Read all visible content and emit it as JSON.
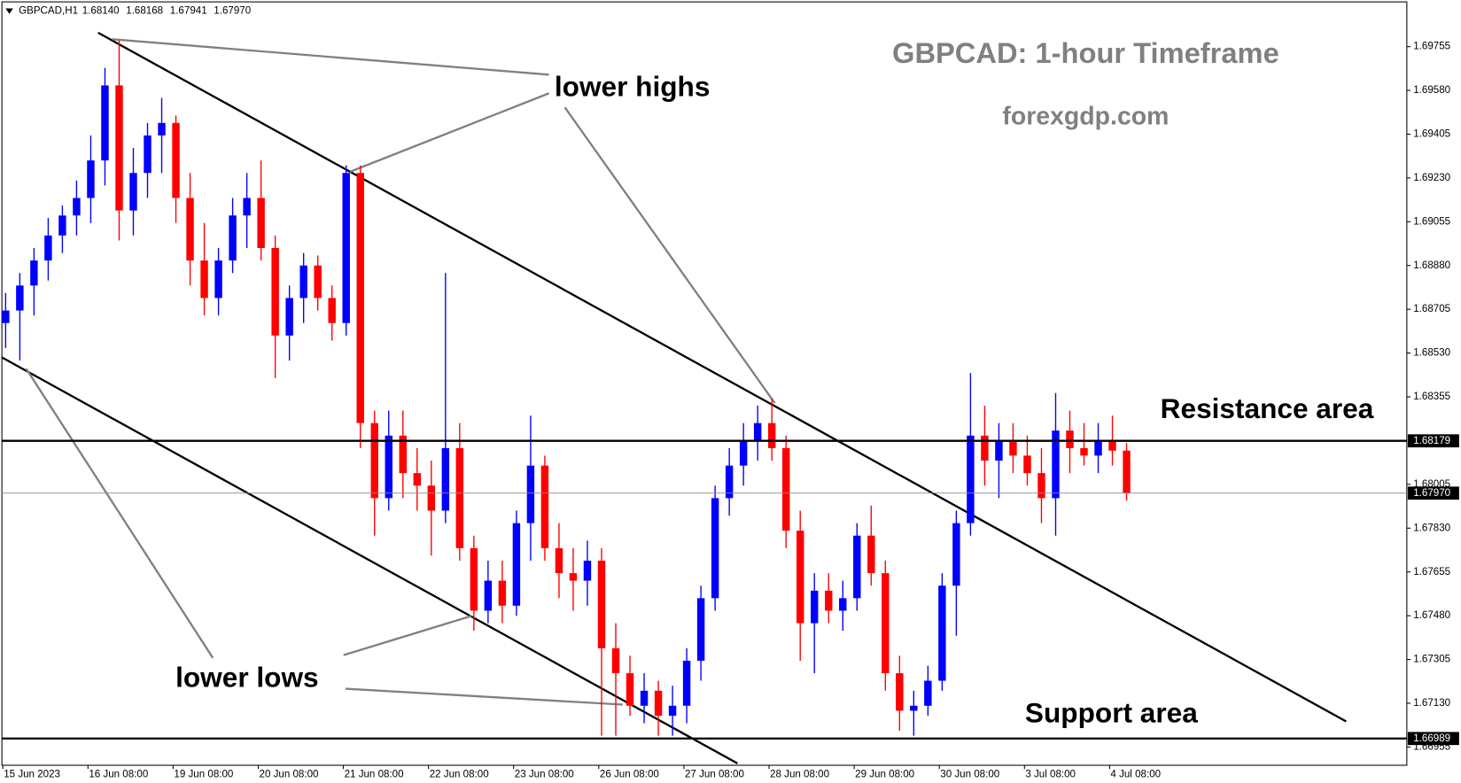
{
  "chart_data": {
    "type": "candlestick",
    "header": {
      "symbol": "GBPCAD,H1",
      "open": "1.68140",
      "high": "1.68168",
      "low": "1.67941",
      "close": "1.67970"
    },
    "title": "GBPCAD: 1-hour Timeframe",
    "subtitle": "forexgdp.com",
    "annotations": [
      "lower highs",
      "lower lows",
      "Resistance area",
      "Support area"
    ],
    "up_color": "#0000ff",
    "down_color": "#ff0000",
    "categories": [
      "15 Jun 2023",
      null,
      null,
      null,
      null,
      null,
      "16 Jun 08:00",
      null,
      null,
      null,
      null,
      null,
      "19 Jun 08:00",
      null,
      null,
      null,
      null,
      null,
      "20 Jun 08:00",
      null,
      null,
      null,
      null,
      null,
      "21 Jun 08:00",
      null,
      null,
      null,
      null,
      null,
      "22 Jun 08:00",
      null,
      null,
      null,
      null,
      null,
      "23 Jun 08:00",
      null,
      null,
      null,
      null,
      null,
      "26 Jun 08:00",
      null,
      null,
      null,
      null,
      null,
      "27 Jun 08:00",
      null,
      null,
      null,
      null,
      null,
      "28 Jun 08:00",
      null,
      null,
      null,
      null,
      null,
      "29 Jun 08:00",
      null,
      null,
      null,
      null,
      null,
      "30 Jun 08:00",
      null,
      null,
      null,
      null,
      null,
      "3 Jul 08:00",
      null,
      null,
      null,
      null,
      null,
      "4 Jul 08:00",
      null
    ],
    "open": [
      1.6865,
      1.687,
      1.688,
      1.689,
      1.69,
      1.6908,
      1.6915,
      1.693,
      1.696,
      1.691,
      1.6925,
      1.694,
      1.6945,
      1.6915,
      1.689,
      1.6875,
      1.689,
      1.6908,
      1.6915,
      1.6895,
      1.686,
      1.6875,
      1.6888,
      1.6875,
      1.6865,
      1.6925,
      1.6825,
      1.6795,
      1.682,
      1.6805,
      1.68,
      1.679,
      1.6815,
      1.6775,
      1.675,
      1.6762,
      1.6752,
      1.6785,
      1.6808,
      1.6775,
      1.6765,
      1.6762,
      1.677,
      1.6735,
      1.6725,
      1.6712,
      1.6718,
      1.6708,
      1.6712,
      1.673,
      1.6755,
      1.6795,
      1.6808,
      1.6818,
      1.6825,
      1.6815,
      1.6782,
      1.6745,
      1.6758,
      1.675,
      1.6755,
      1.678,
      1.6765,
      1.6725,
      1.671,
      1.6712,
      1.6722,
      1.676,
      1.6785,
      1.682,
      1.681,
      1.6818,
      1.6812,
      1.6805,
      1.6795,
      1.6822,
      1.6815,
      1.6812,
      1.6818,
      1.6814
    ],
    "high": [
      1.6877,
      1.6885,
      1.6895,
      1.6907,
      1.6912,
      1.6922,
      1.694,
      1.6967,
      1.6978,
      1.6935,
      1.6945,
      1.6955,
      1.6948,
      1.6925,
      1.6905,
      1.6895,
      1.6915,
      1.6925,
      1.693,
      1.69,
      1.688,
      1.6893,
      1.6892,
      1.688,
      1.6928,
      1.6928,
      1.683,
      1.683,
      1.683,
      1.6815,
      1.681,
      1.6885,
      1.6825,
      1.678,
      1.677,
      1.677,
      1.679,
      1.6828,
      1.6812,
      1.6785,
      1.6775,
      1.6778,
      1.6775,
      1.6745,
      1.6732,
      1.6725,
      1.6722,
      1.672,
      1.6735,
      1.676,
      1.68,
      1.6815,
      1.6825,
      1.6832,
      1.6835,
      1.682,
      1.679,
      1.6765,
      1.6765,
      1.6762,
      1.6785,
      1.6792,
      1.677,
      1.6732,
      1.6718,
      1.6728,
      1.6765,
      1.679,
      1.6845,
      1.6832,
      1.6825,
      1.6825,
      1.682,
      1.6815,
      1.6837,
      1.683,
      1.6825,
      1.6825,
      1.6828,
      1.6817
    ],
    "low": [
      1.6855,
      1.685,
      1.6868,
      1.6882,
      1.6893,
      1.69,
      1.6905,
      1.692,
      1.6898,
      1.69,
      1.6915,
      1.6925,
      1.6905,
      1.688,
      1.6868,
      1.6868,
      1.6885,
      1.6895,
      1.689,
      1.6843,
      1.685,
      1.6865,
      1.687,
      1.6858,
      1.686,
      1.6815,
      1.678,
      1.679,
      1.6795,
      1.679,
      1.6772,
      1.6785,
      1.677,
      1.6742,
      1.6745,
      1.6745,
      1.6748,
      1.677,
      1.677,
      1.6755,
      1.675,
      1.6752,
      1.67,
      1.67,
      1.6708,
      1.6705,
      1.67,
      1.67,
      1.6705,
      1.6722,
      1.675,
      1.6788,
      1.68,
      1.681,
      1.681,
      1.6775,
      1.673,
      1.6725,
      1.6745,
      1.6742,
      1.675,
      1.676,
      1.6718,
      1.6702,
      1.67,
      1.6708,
      1.6718,
      1.674,
      1.678,
      1.68,
      1.6795,
      1.6805,
      1.68,
      1.6785,
      1.678,
      1.6805,
      1.6808,
      1.6805,
      1.6808,
      1.6794
    ],
    "close": [
      1.687,
      1.688,
      1.689,
      1.69,
      1.6908,
      1.6915,
      1.693,
      1.696,
      1.691,
      1.6925,
      1.694,
      1.6945,
      1.6915,
      1.689,
      1.6875,
      1.689,
      1.6908,
      1.6915,
      1.6895,
      1.686,
      1.6875,
      1.6888,
      1.6875,
      1.6865,
      1.6925,
      1.6825,
      1.6795,
      1.682,
      1.6805,
      1.68,
      1.679,
      1.6815,
      1.6775,
      1.675,
      1.6762,
      1.6752,
      1.6785,
      1.6808,
      1.6775,
      1.6765,
      1.6762,
      1.677,
      1.6735,
      1.6725,
      1.6712,
      1.6718,
      1.6708,
      1.6712,
      1.673,
      1.6755,
      1.6795,
      1.6808,
      1.6818,
      1.6825,
      1.6815,
      1.6782,
      1.6745,
      1.6758,
      1.675,
      1.6755,
      1.678,
      1.6765,
      1.6725,
      1.671,
      1.6712,
      1.6722,
      1.676,
      1.6785,
      1.682,
      1.681,
      1.6818,
      1.6812,
      1.6805,
      1.6795,
      1.6822,
      1.6815,
      1.6812,
      1.6818,
      1.6814,
      1.6797
    ],
    "ylim": [
      1.66882,
      1.69934
    ],
    "yticks": [
      {
        "value": 1.69755,
        "label": "1.69755"
      },
      {
        "value": 1.6958,
        "label": "1.69580"
      },
      {
        "value": 1.69405,
        "label": "1.69405"
      },
      {
        "value": 1.6923,
        "label": "1.69230"
      },
      {
        "value": 1.69055,
        "label": "1.69055"
      },
      {
        "value": 1.6888,
        "label": "1.68880"
      },
      {
        "value": 1.68705,
        "label": "1.68705"
      },
      {
        "value": 1.6853,
        "label": "1.68530"
      },
      {
        "value": 1.68355,
        "label": "1.68355"
      },
      {
        "value": 1.68005,
        "label": "1.68005"
      },
      {
        "value": 1.6783,
        "label": "1.67830"
      },
      {
        "value": 1.67655,
        "label": "1.67655"
      },
      {
        "value": 1.6748,
        "label": "1.67480"
      },
      {
        "value": 1.67305,
        "label": "1.67305"
      },
      {
        "value": 1.6713,
        "label": "1.67130"
      },
      {
        "value": 1.66955,
        "label": "1.66955"
      }
    ],
    "levels": [
      {
        "value": 1.68179,
        "label": "1.68179",
        "style": "solid"
      },
      {
        "value": 1.6797,
        "label": "1.67970",
        "style": "thin"
      },
      {
        "value": 1.66989,
        "label": "1.66989",
        "style": "solid"
      }
    ]
  }
}
